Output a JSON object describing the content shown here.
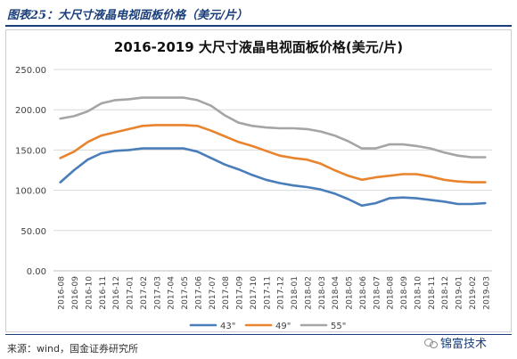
{
  "caption": "图表25：大尺寸液晶电视面板价格（美元/片）",
  "source": "来源：wind，国金证券研究所",
  "watermark": "锦富技术",
  "chart_data": {
    "type": "line",
    "title": "2016-2019 大尺寸液晶电视面板价格(美元/片)",
    "xlabel": "",
    "ylabel": "",
    "ylim": [
      0,
      250
    ],
    "yticks": [
      "0.00",
      "50.00",
      "100.00",
      "150.00",
      "200.00",
      "250.00"
    ],
    "grid": true,
    "legend_position": "bottom",
    "categories": [
      "2016-08",
      "2016-09",
      "2016-10",
      "2016-11",
      "2016-12",
      "2017-01",
      "2017-02",
      "2017-03",
      "2017-04",
      "2017-05",
      "2017-06",
      "2017-07",
      "2017-08",
      "2017-09",
      "2017-10",
      "2017-11",
      "2017-12",
      "2018-01",
      "2018-02",
      "2018-03",
      "2018-04",
      "2018-05",
      "2018-06",
      "2018-07",
      "2018-08",
      "2018-09",
      "2018-10",
      "2018-11",
      "2018-12",
      "2019-01",
      "2019-02",
      "2019-03"
    ],
    "series": [
      {
        "name": "43\"",
        "color": "#4a7ebb",
        "values": [
          110,
          125,
          138,
          146,
          149,
          150,
          152,
          152,
          152,
          152,
          148,
          140,
          132,
          126,
          119,
          113,
          109,
          106,
          104,
          101,
          96,
          89,
          81,
          84,
          90,
          91,
          90,
          88,
          86,
          83,
          83,
          84
        ]
      },
      {
        "name": "49\"",
        "color": "#e8842e",
        "values": [
          140,
          148,
          160,
          168,
          172,
          176,
          180,
          181,
          181,
          181,
          180,
          174,
          167,
          160,
          155,
          149,
          143,
          140,
          138,
          133,
          125,
          118,
          113,
          116,
          118,
          120,
          120,
          117,
          113,
          111,
          110,
          110
        ]
      },
      {
        "name": "55\"",
        "color": "#a5a5a5",
        "values": [
          189,
          192,
          198,
          208,
          212,
          213,
          215,
          215,
          215,
          215,
          212,
          205,
          193,
          184,
          180,
          178,
          177,
          177,
          176,
          173,
          168,
          161,
          152,
          152,
          157,
          157,
          155,
          152,
          147,
          143,
          141,
          141
        ]
      }
    ]
  }
}
